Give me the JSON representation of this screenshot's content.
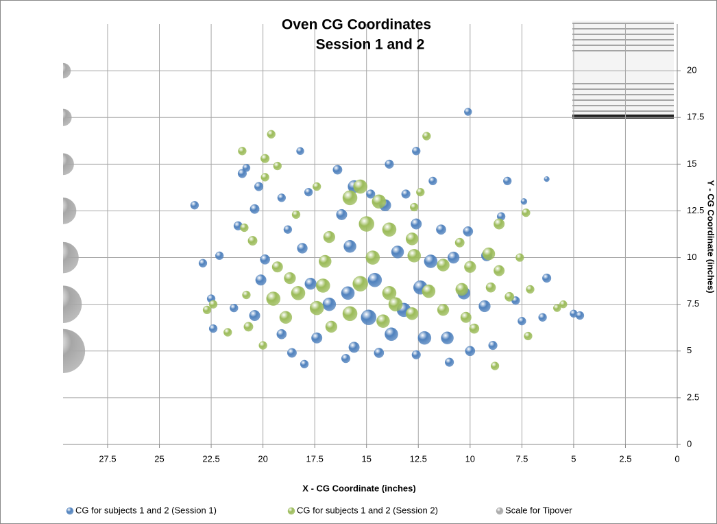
{
  "chart_data": {
    "type": "bubble",
    "title": "Oven CG Coordinates",
    "subtitle": "Session 1 and 2",
    "x_label": "X - CG  Coordinate (inches)",
    "y_label": "Y - CG Coordinate (inches)",
    "xlim": [
      29.65,
      0
    ],
    "ylim": [
      0,
      22.5
    ],
    "xticks": [
      27.5,
      25,
      22.5,
      20,
      17.5,
      15,
      12.5,
      10,
      7.5,
      5,
      2.5,
      0
    ],
    "yticks": [
      0,
      2.5,
      5,
      7.5,
      10,
      12.5,
      15,
      17.5,
      20
    ],
    "grid": true,
    "legend": "bottom",
    "series": [
      {
        "name": "CG for subjects 1 and 2 (Session 1)",
        "color": "#4f81bd",
        "x": [
          10.1,
          12.6,
          13.9,
          18.2,
          20.8,
          21,
          20.2,
          16.4,
          14.8,
          11.8,
          8.2,
          6.3,
          23.3,
          20.4,
          19.1,
          17.8,
          15.6,
          13.1,
          7.4,
          21.2,
          18.8,
          16.2,
          14.1,
          12.6,
          11.4,
          10.1,
          8.5,
          22.9,
          22.1,
          19.9,
          18.1,
          15.8,
          13.5,
          11.9,
          10.8,
          9.2,
          22.5,
          21.4,
          20.1,
          17.7,
          15.9,
          14.6,
          12.4,
          10.3,
          9.3,
          7.8,
          6.3,
          5.0,
          4.7,
          22.4,
          20.4,
          19.1,
          17.4,
          15.6,
          13.8,
          12.2,
          11.1,
          18.6,
          18.0,
          16.0,
          14.4,
          12.6,
          11.0,
          10.0,
          8.9,
          7.5,
          6.5,
          14.9,
          13.2,
          16.8
        ],
        "y": [
          17.8,
          15.7,
          15,
          15.7,
          14.8,
          14.5,
          13.8,
          14.7,
          13.4,
          14.1,
          14.1,
          14.2,
          12.8,
          12.6,
          13.2,
          13.5,
          13.8,
          13.4,
          13,
          11.7,
          11.5,
          12.3,
          12.8,
          11.8,
          11.5,
          11.4,
          12.2,
          9.7,
          10.1,
          9.9,
          10.5,
          10.6,
          10.3,
          9.8,
          10,
          10.1,
          7.8,
          7.3,
          8.8,
          8.6,
          8.1,
          8.8,
          8.4,
          8.1,
          7.4,
          7.7,
          8.9,
          7.0,
          6.9,
          6.2,
          6.9,
          5.9,
          5.7,
          5.2,
          5.9,
          5.7,
          5.7,
          4.9,
          4.3,
          4.6,
          4.9,
          4.8,
          4.4,
          5.0,
          5.3,
          6.6,
          6.8,
          6.8,
          7.2,
          7.5
        ],
        "sizes": [
          0.3,
          0.35,
          0.4,
          0.3,
          0.3,
          0.4,
          0.4,
          0.45,
          0.4,
          0.35,
          0.35,
          0.15,
          0.35,
          0.45,
          0.35,
          0.35,
          0.8,
          0.4,
          0.2,
          0.4,
          0.35,
          0.6,
          0.7,
          0.6,
          0.5,
          0.5,
          0.35,
          0.35,
          0.35,
          0.5,
          0.55,
          0.8,
          0.8,
          0.9,
          0.7,
          0.6,
          0.35,
          0.35,
          0.6,
          0.7,
          0.9,
          1,
          1,
          0.8,
          0.7,
          0.35,
          0.4,
          0.3,
          0.35,
          0.35,
          0.6,
          0.5,
          0.6,
          0.6,
          0.9,
          0.9,
          0.8,
          0.45,
          0.35,
          0.4,
          0.5,
          0.4,
          0.4,
          0.5,
          0.4,
          0.35,
          0.35,
          1.2,
          1,
          0.9
        ]
      },
      {
        "name": "CG for subjects 1 and 2 (Session 2)",
        "color": "#9bbb59",
        "x": [
          19.6,
          12.1,
          21.0,
          19.9,
          19.3,
          19.9,
          17.4,
          15.3,
          15.8,
          14.4,
          12.4,
          12.7,
          8.6,
          7.3,
          18.4,
          20.9,
          20.5,
          16.8,
          15.0,
          13.9,
          12.8,
          10.5,
          9.1,
          17.0,
          14.7,
          12.7,
          11.3,
          10.0,
          8.6,
          7.6,
          19.3,
          18.7,
          20.8,
          22.4,
          22.7,
          21.7,
          20.7,
          19.5,
          18.3,
          17.1,
          15.3,
          13.9,
          12.0,
          10.4,
          9.0,
          8.1,
          7.1,
          5.8,
          5.5,
          18.9,
          17.4,
          15.8,
          14.2,
          12.8,
          11.3,
          10.2,
          9.8,
          8.8,
          7.2,
          20.0,
          16.7,
          13.6
        ],
        "y": [
          16.6,
          16.5,
          15.7,
          15.3,
          14.9,
          14.3,
          13.8,
          13.8,
          13.2,
          13.0,
          13.5,
          12.7,
          11.8,
          12.4,
          12.3,
          11.6,
          10.9,
          11.1,
          11.8,
          11.5,
          11.0,
          10.8,
          10.2,
          9.8,
          10.0,
          10.1,
          9.6,
          9.5,
          9.3,
          10.0,
          9.5,
          8.9,
          8.0,
          7.5,
          7.2,
          6.0,
          6.3,
          7.8,
          8.1,
          8.5,
          8.6,
          8.1,
          8.2,
          8.3,
          8.4,
          7.9,
          8.3,
          7.3,
          7.5,
          6.8,
          7.3,
          7.0,
          6.6,
          7.0,
          7.2,
          6.8,
          6.2,
          4.2,
          5.8,
          5.3,
          6.3,
          7.5
        ],
        "sizes": [
          0.35,
          0.35,
          0.35,
          0.4,
          0.35,
          0.35,
          0.35,
          1,
          1.1,
          1,
          0.35,
          0.35,
          0.6,
          0.35,
          0.35,
          0.35,
          0.45,
          0.7,
          1.2,
          1,
          0.8,
          0.45,
          0.8,
          0.8,
          1,
          0.9,
          0.8,
          0.7,
          0.6,
          0.35,
          0.6,
          0.7,
          0.35,
          0.35,
          0.35,
          0.35,
          0.45,
          1,
          1,
          1,
          1.2,
          1,
          0.9,
          0.8,
          0.5,
          0.45,
          0.35,
          0.3,
          0.3,
          0.8,
          1,
          1.1,
          0.9,
          0.8,
          0.7,
          0.6,
          0.5,
          0.35,
          0.35,
          0.35,
          0.7,
          1
        ]
      },
      {
        "name": "Scale for Tipover",
        "color": "#a6a6a6",
        "x": [
          29.65,
          29.65,
          29.65,
          29.65,
          29.65,
          29.65,
          29.65
        ],
        "y": [
          5,
          7.5,
          10,
          12.5,
          15,
          17.5,
          20
        ],
        "sizes": [
          10,
          7.2,
          5,
          3.6,
          2.4,
          1.5,
          1.2
        ]
      }
    ]
  }
}
